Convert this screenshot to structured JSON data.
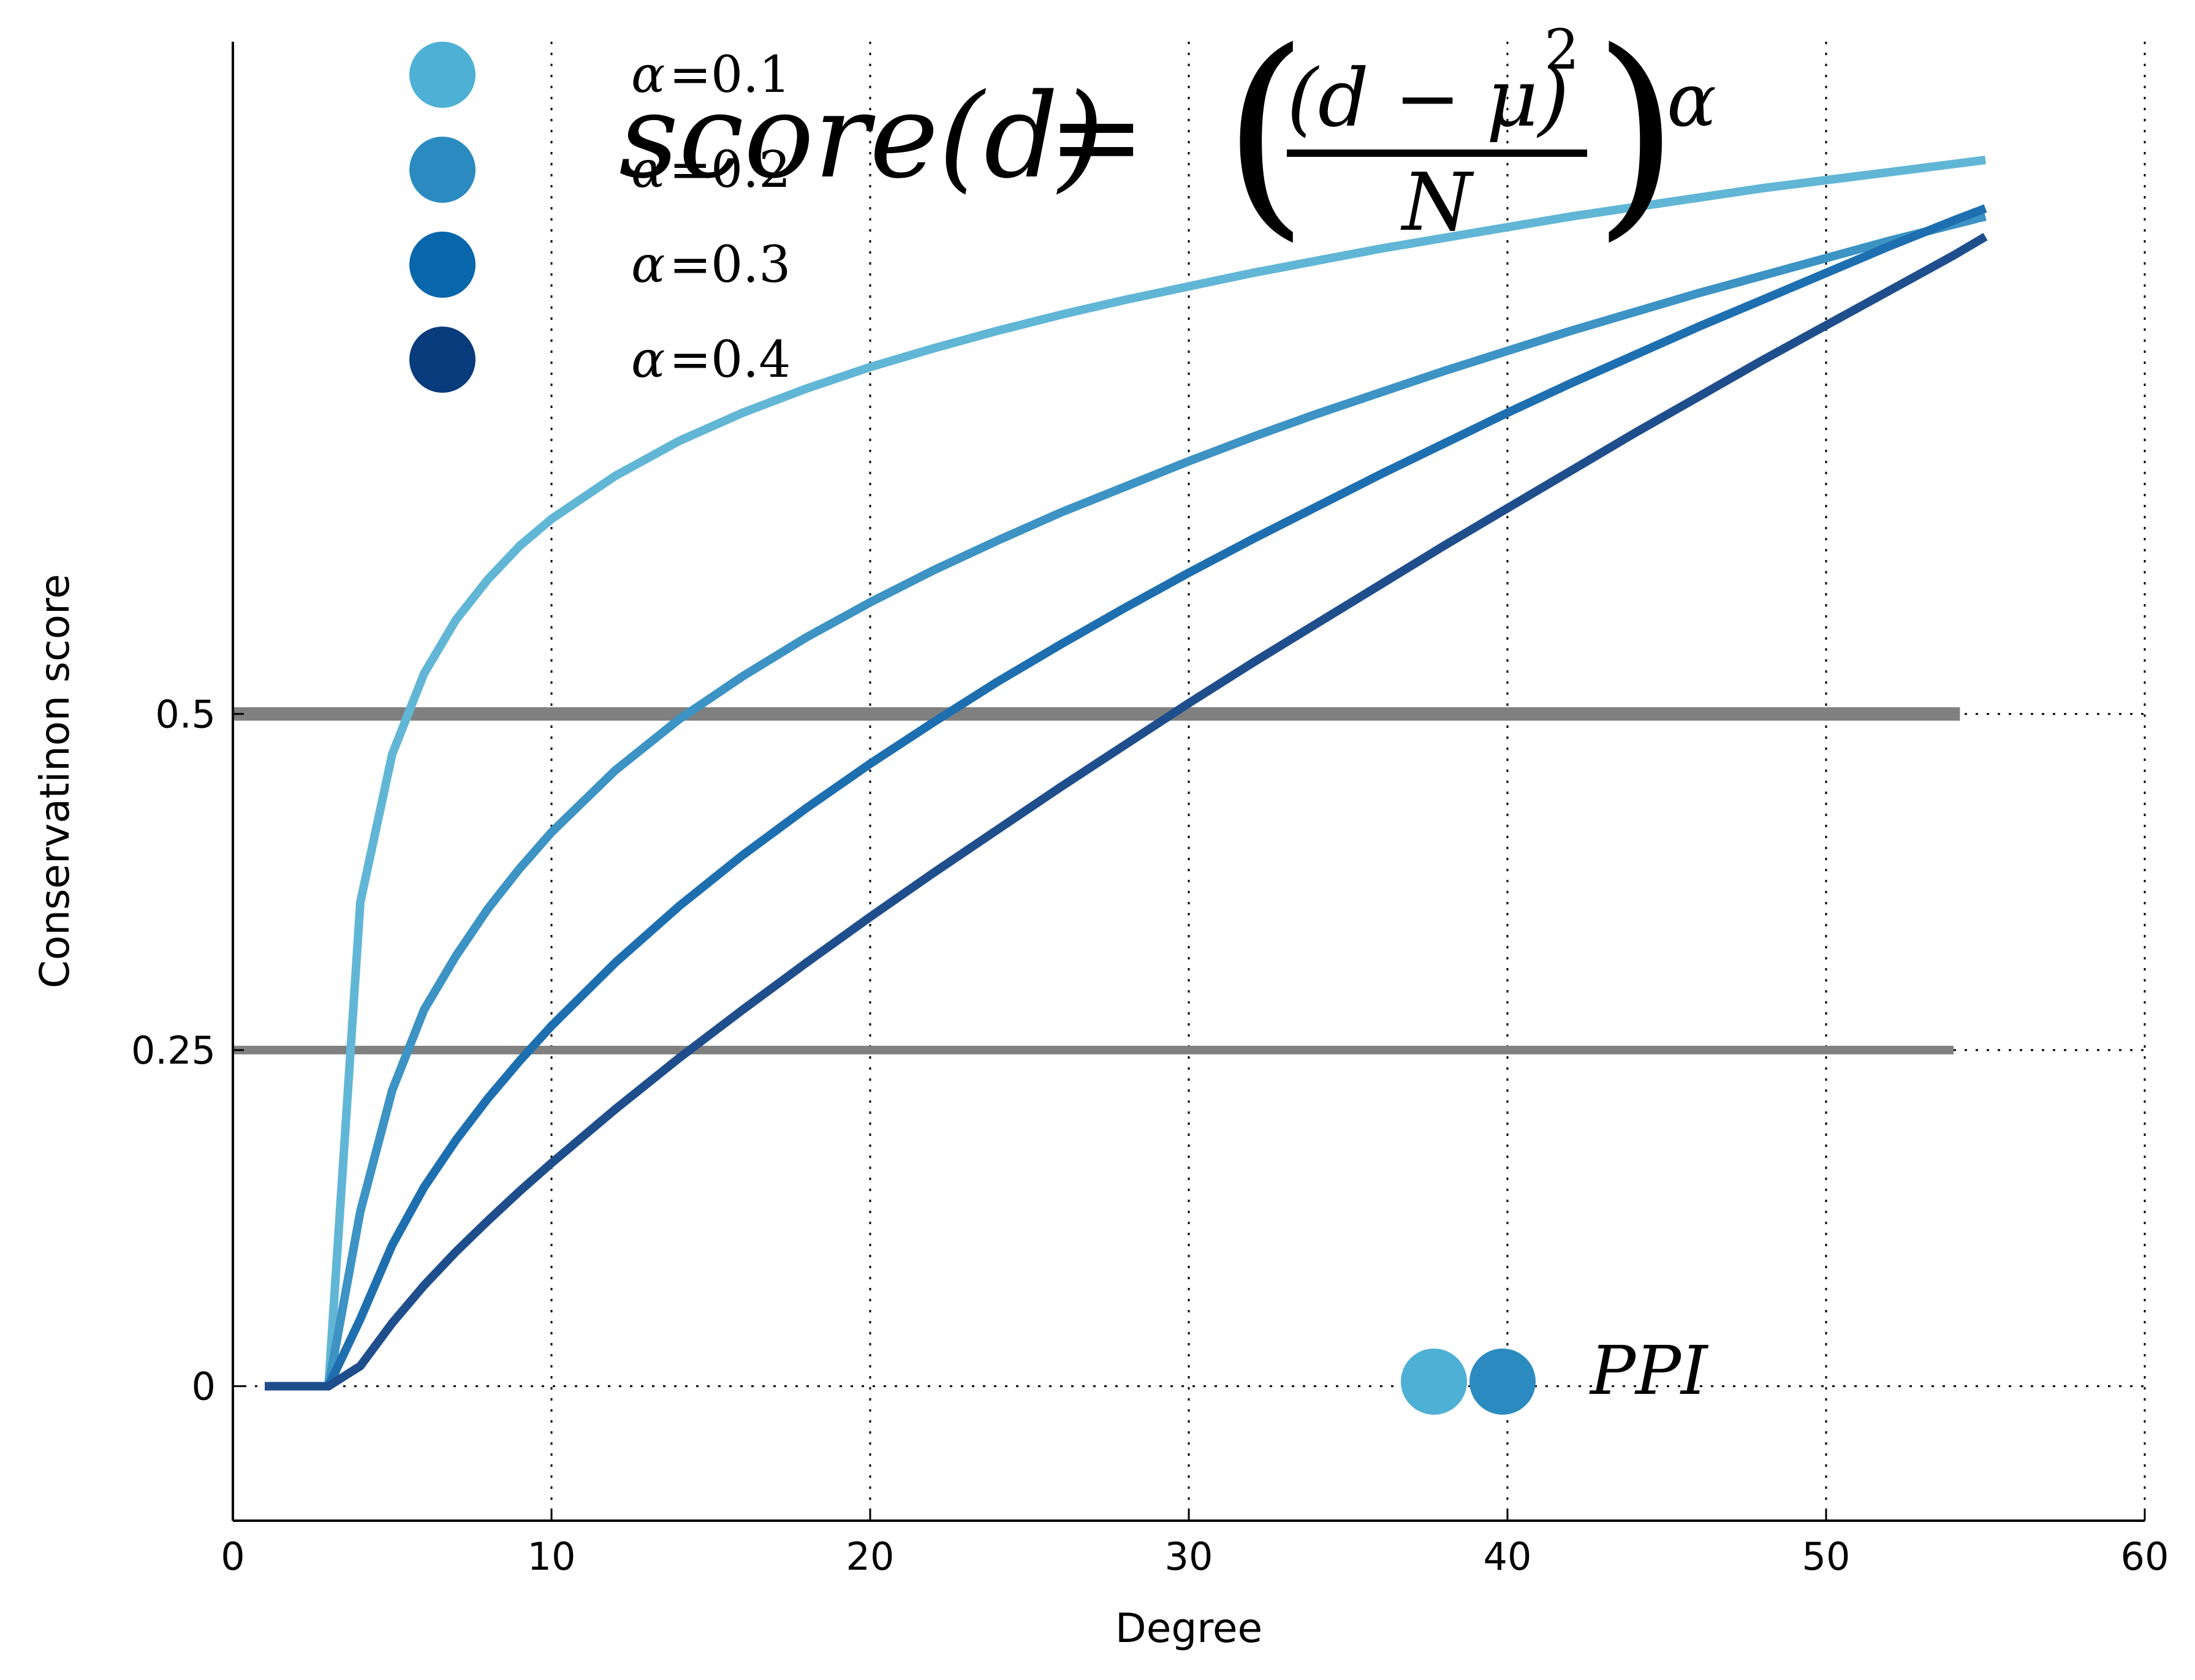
{
  "chart_data": {
    "type": "line",
    "title": "",
    "xlabel": "Degree",
    "ylabel": "Conservatinon score",
    "xlim": [
      0,
      60
    ],
    "ylim": [
      -0.1,
      1.0
    ],
    "x_ticks": [
      {
        "value": 0,
        "label": "0"
      },
      {
        "value": 10,
        "label": "10"
      },
      {
        "value": 20,
        "label": "20"
      },
      {
        "value": 30,
        "label": "30"
      },
      {
        "value": 40,
        "label": "40"
      },
      {
        "value": 50,
        "label": "50"
      },
      {
        "value": 60,
        "label": "60"
      }
    ],
    "y_ticks": [
      {
        "value": 0,
        "label": "0"
      },
      {
        "value": 0.25,
        "label": "0.25"
      },
      {
        "value": 0.5,
        "label": "0.5"
      }
    ],
    "grid": "dotted",
    "x": [
      1,
      2,
      3,
      4,
      5,
      6,
      7,
      8,
      9,
      10,
      12,
      14,
      16,
      18,
      20,
      22,
      24,
      26,
      28,
      30,
      32,
      34,
      36,
      38,
      40,
      42,
      44,
      46,
      48,
      50,
      52,
      54,
      55
    ],
    "series": [
      {
        "name": "α = 0.1",
        "color": "#61b6d6",
        "values": [
          0,
          0,
          0,
          0.36,
          0.47,
          0.53,
          0.57,
          0.6,
          0.625,
          0.645,
          0.677,
          0.703,
          0.724,
          0.742,
          0.758,
          0.772,
          0.785,
          0.797,
          0.808,
          0.818,
          0.828,
          0.837,
          0.846,
          0.854,
          0.862,
          0.87,
          0.877,
          0.884,
          0.891,
          0.897,
          0.903,
          0.909,
          0.912
        ]
      },
      {
        "name": "α = 0.2",
        "color": "#3c93c4",
        "values": [
          0,
          0,
          0,
          0.13,
          0.22,
          0.28,
          0.32,
          0.355,
          0.385,
          0.412,
          0.458,
          0.496,
          0.528,
          0.557,
          0.583,
          0.607,
          0.629,
          0.65,
          0.669,
          0.688,
          0.706,
          0.723,
          0.739,
          0.755,
          0.77,
          0.785,
          0.799,
          0.813,
          0.826,
          0.839,
          0.852,
          0.864,
          0.87
        ]
      },
      {
        "name": "α = 0.3",
        "color": "#1e6fb0",
        "values": [
          0,
          0,
          0,
          0.05,
          0.105,
          0.148,
          0.183,
          0.214,
          0.242,
          0.268,
          0.315,
          0.357,
          0.395,
          0.43,
          0.463,
          0.494,
          0.524,
          0.552,
          0.579,
          0.605,
          0.63,
          0.654,
          0.678,
          0.701,
          0.724,
          0.746,
          0.767,
          0.788,
          0.808,
          0.828,
          0.848,
          0.867,
          0.876
        ]
      },
      {
        "name": "α = 0.4",
        "color": "#1f4e8c",
        "values": [
          0,
          0,
          0,
          0.015,
          0.047,
          0.075,
          0.1,
          0.123,
          0.145,
          0.166,
          0.206,
          0.244,
          0.28,
          0.315,
          0.349,
          0.382,
          0.414,
          0.446,
          0.477,
          0.508,
          0.538,
          0.567,
          0.596,
          0.625,
          0.653,
          0.681,
          0.709,
          0.736,
          0.763,
          0.789,
          0.815,
          0.841,
          0.855
        ]
      }
    ],
    "hlines": [
      {
        "y": 0.5,
        "x_end": 54.2,
        "color": "#808080"
      },
      {
        "y": 0.25,
        "x_end": 54.0,
        "color": "#808080"
      }
    ],
    "legend": {
      "placement": "top-left",
      "entries": [
        {
          "alpha_symbol": "α",
          "eq": "=",
          "value": "0.1",
          "color": "#4fb0d6"
        },
        {
          "alpha_symbol": "α",
          "eq": "=",
          "value": "0.2",
          "color": "#2b8bc0"
        },
        {
          "alpha_symbol": "α",
          "eq": "=",
          "value": "0.3",
          "color": "#0866ab"
        },
        {
          "alpha_symbol": "α",
          "eq": "=",
          "value": "0.4",
          "color": "#083b7c"
        }
      ]
    },
    "formula": {
      "lhs": "score(d)",
      "equals": "=",
      "open_paren": "(",
      "numerator": "(d − μ)",
      "numerator_exp": "2",
      "denominator": "N",
      "close_paren": ")",
      "exponent": "α"
    },
    "annotation": {
      "label": "PPI",
      "dot_colors": [
        "#4fb0d6",
        "#2b8bc0"
      ]
    }
  }
}
